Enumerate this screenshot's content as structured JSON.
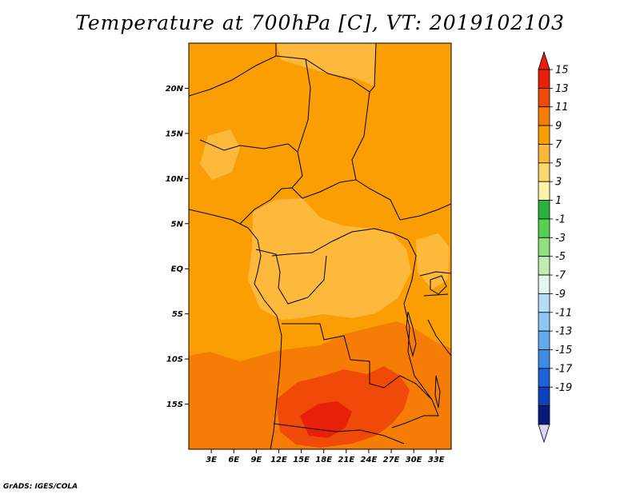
{
  "title": "Temperature at 700hPa [C], VT: 2019102103",
  "credit": "GrADS: IGES/COLA",
  "map": {
    "region": "Central and Southern Africa",
    "lon_range": [
      0,
      35
    ],
    "lat_range": [
      -20,
      25
    ],
    "lon_ticks": [
      "3E",
      "6E",
      "9E",
      "12E",
      "15E",
      "18E",
      "21E",
      "24E",
      "27E",
      "30E",
      "33E"
    ],
    "lat_ticks": [
      "20N",
      "15N",
      "10N",
      "5N",
      "EQ",
      "5S",
      "10S",
      "15S"
    ]
  },
  "colorbar": {
    "labels": [
      "15",
      "13",
      "11",
      "9",
      "7",
      "5",
      "3",
      "1",
      "-1",
      "-3",
      "-5",
      "-7",
      "-9",
      "-11",
      "-13",
      "-15",
      "-17",
      "-19"
    ],
    "colors": [
      "#e8200a",
      "#f04a08",
      "#f57d05",
      "#fa9e04",
      "#fdb93c",
      "#fdd66e",
      "#fff3a8",
      "#27b33b",
      "#55d04f",
      "#8fe07f",
      "#bfeeb0",
      "#e2f8ee",
      "#b5dcf8",
      "#8ec5f5",
      "#64a8ee",
      "#3c8ae6",
      "#1e62d6",
      "#0e3fbd",
      "#0a1a7a"
    ],
    "top_arrow_color": "#e8200a",
    "bottom_arrow_color": "#dcd6f2"
  }
}
